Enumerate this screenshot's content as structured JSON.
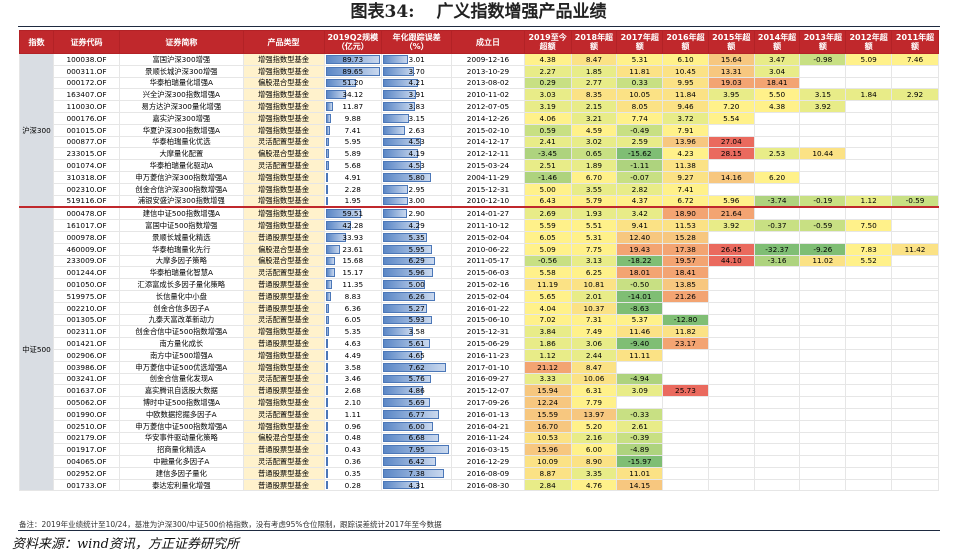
{
  "title": {
    "number": "图表34:",
    "text": "广义指数增强产品业绩"
  },
  "headers": [
    "指数",
    "证券代码",
    "证券简称",
    "产品类型",
    "2019Q2规模（亿元）",
    "年化跟踪误差（%）",
    "成立日",
    "2019至今超额",
    "2018年超额",
    "2017年超额",
    "2016年超额",
    "2015年超额",
    "2014年超额",
    "2013年超额",
    "2012年超额",
    "2011年超额"
  ],
  "groups": [
    {
      "label": "沪深300",
      "rows": [
        [
          "100038.OF",
          "富国沪深300增强",
          "增强指数型基金",
          "89.73",
          "3.01",
          "2009-12-16",
          "4.38",
          "8.47",
          "5.31",
          "6.10",
          "15.64",
          "3.47",
          "-0.98",
          "5.09",
          "7.46"
        ],
        [
          "000311.OF",
          "景顺长城沪深300增强",
          "增强指数型基金",
          "89.65",
          "3.70",
          "2013-10-29",
          "2.27",
          "1.85",
          "11.81",
          "10.45",
          "13.31",
          "3.04",
          "",
          "",
          ""
        ],
        [
          "000172.OF",
          "华泰柏瑞量化增强A",
          "偏股混合型基金",
          "51.20",
          "4.21",
          "2013-08-02",
          "0.29",
          "2.77",
          "0.33",
          "9.95",
          "19.03",
          "18.41",
          "",
          "",
          ""
        ],
        [
          "163407.OF",
          "兴全沪深300指数增强A",
          "增强指数型基金",
          "34.12",
          "3.91",
          "2010-11-02",
          "3.03",
          "8.35",
          "10.05",
          "11.84",
          "3.95",
          "5.50",
          "3.15",
          "1.84",
          "2.92"
        ],
        [
          "110030.OF",
          "易方达沪深300量化增强",
          "增强指数型基金",
          "11.87",
          "3.83",
          "2012-07-05",
          "3.19",
          "2.15",
          "8.05",
          "9.46",
          "7.20",
          "4.38",
          "3.92",
          "",
          ""
        ],
        [
          "000176.OF",
          "嘉实沪深300增强",
          "增强指数型基金",
          "9.88",
          "3.15",
          "2014-12-26",
          "4.06",
          "3.21",
          "7.74",
          "3.72",
          "5.54",
          "",
          "",
          "",
          ""
        ],
        [
          "001015.OF",
          "华夏沪深300指数增强A",
          "增强指数型基金",
          "7.41",
          "2.63",
          "2015-02-10",
          "0.59",
          "4.59",
          "-0.49",
          "7.91",
          "",
          "",
          "",
          "",
          ""
        ],
        [
          "000877.OF",
          "华泰柏瑞量化优选",
          "灵活配置型基金",
          "5.95",
          "4.53",
          "2014-12-17",
          "2.41",
          "3.02",
          "2.59",
          "13.96",
          "27.04",
          "",
          "",
          "",
          ""
        ],
        [
          "233015.OF",
          "大摩量化配置",
          "偏股混合型基金",
          "5.89",
          "4.19",
          "2012-12-11",
          "-3.45",
          "0.65",
          "-15.62",
          "4.23",
          "28.15",
          "2.53",
          "10.44",
          "",
          ""
        ],
        [
          "001074.OF",
          "华泰柏瑞量化驱动A",
          "灵活配置型基金",
          "5.68",
          "4.53",
          "2015-03-24",
          "2.51",
          "1.89",
          "-1.11",
          "11.38",
          "",
          "",
          "",
          "",
          ""
        ],
        [
          "310318.OF",
          "申万菱信沪深300指数增强A",
          "增强指数型基金",
          "4.91",
          "5.80",
          "2004-11-29",
          "-1.46",
          "6.70",
          "-0.07",
          "9.27",
          "14.16",
          "6.20",
          "",
          "",
          ""
        ],
        [
          "002310.OF",
          "创金合信沪深300指数增强A",
          "增强指数型基金",
          "2.28",
          "2.95",
          "2015-12-31",
          "5.00",
          "3.55",
          "2.82",
          "7.41",
          "",
          "",
          "",
          "",
          ""
        ],
        [
          "519116.OF",
          "浦银安盛沪深300指数增强",
          "增强指数型基金",
          "1.95",
          "3.00",
          "2010-12-10",
          "6.43",
          "5.79",
          "4.37",
          "6.72",
          "5.96",
          "-3.74",
          "-0.19",
          "1.12",
          "-0.59"
        ]
      ]
    },
    {
      "label": "中证500",
      "rows": [
        [
          "000478.OF",
          "建信中证500指数增强A",
          "增强指数型基金",
          "59.51",
          "2.90",
          "2014-01-27",
          "2.69",
          "1.93",
          "3.42",
          "18.90",
          "21.64",
          "",
          "",
          "",
          ""
        ],
        [
          "161017.OF",
          "富国中证500指数增强",
          "增强指数型基金",
          "42.28",
          "4.29",
          "2011-10-12",
          "5.59",
          "5.51",
          "9.41",
          "11.53",
          "3.92",
          "-0.37",
          "-0.59",
          "7.50",
          ""
        ],
        [
          "000978.OF",
          "景顺长城量化精选",
          "普通股票型基金",
          "33.93",
          "5.35",
          "2015-02-04",
          "6.05",
          "5.31",
          "12.40",
          "15.28",
          "",
          "",
          "",
          "",
          ""
        ],
        [
          "460009.OF",
          "华泰柏瑞量化先行",
          "偏股混合型基金",
          "23.61",
          "5.95",
          "2010-06-22",
          "5.09",
          "7.75",
          "19.43",
          "17.38",
          "26.45",
          "-32.37",
          "-9.26",
          "7.83",
          "11.42"
        ],
        [
          "233009.OF",
          "大摩多因子策略",
          "偏股混合型基金",
          "15.68",
          "6.29",
          "2011-05-17",
          "-0.56",
          "3.13",
          "-18.22",
          "19.57",
          "44.10",
          "-3.16",
          "11.02",
          "5.52",
          ""
        ],
        [
          "001244.OF",
          "华泰柏瑞量化智慧A",
          "灵活配置型基金",
          "15.17",
          "5.96",
          "2015-06-03",
          "5.58",
          "6.25",
          "18.01",
          "18.41",
          "",
          "",
          "",
          "",
          ""
        ],
        [
          "001050.OF",
          "汇添富成长多因子量化策略",
          "普通股票型基金",
          "11.35",
          "5.00",
          "2015-02-16",
          "11.19",
          "10.81",
          "-0.50",
          "13.85",
          "",
          "",
          "",
          "",
          ""
        ],
        [
          "519975.OF",
          "长信量化中小盘",
          "普通股票型基金",
          "8.83",
          "6.26",
          "2015-02-04",
          "5.65",
          "2.01",
          "-14.01",
          "21.26",
          "",
          "",
          "",
          "",
          ""
        ],
        [
          "002210.OF",
          "创金合信多因子A",
          "普通股票型基金",
          "6.36",
          "5.27",
          "2016-01-22",
          "4.04",
          "10.37",
          "-8.63",
          "",
          "",
          "",
          "",
          "",
          ""
        ],
        [
          "001305.OF",
          "九泰天富改革新动力",
          "灵活配置型基金",
          "6.05",
          "5.93",
          "2015-06-10",
          "7.02",
          "7.31",
          "5.37",
          "-12.80",
          "",
          "",
          "",
          "",
          ""
        ],
        [
          "002311.OF",
          "创金合信中证500指数增强A",
          "增强指数型基金",
          "5.35",
          "3.58",
          "2015-12-31",
          "3.84",
          "7.49",
          "11.46",
          "11.82",
          "",
          "",
          "",
          "",
          ""
        ],
        [
          "001421.OF",
          "南方量化成长",
          "普通股票型基金",
          "4.63",
          "5.61",
          "2015-06-29",
          "1.86",
          "3.06",
          "-9.40",
          "23.17",
          "",
          "",
          "",
          "",
          ""
        ],
        [
          "002906.OF",
          "南方中证500增强A",
          "增强指数型基金",
          "4.49",
          "4.65",
          "2016-11-23",
          "1.12",
          "2.44",
          "11.11",
          "",
          "",
          "",
          "",
          "",
          ""
        ],
        [
          "003986.OF",
          "申万菱信中证500优选增强A",
          "增强指数型基金",
          "3.58",
          "7.62",
          "2017-01-10",
          "21.12",
          "8.47",
          "",
          "",
          "",
          "",
          "",
          "",
          ""
        ],
        [
          "003241.OF",
          "创金合信量化发现A",
          "灵活配置型基金",
          "3.46",
          "5.76",
          "2016-09-27",
          "3.33",
          "10.06",
          "-4.94",
          "",
          "",
          "",
          "",
          "",
          ""
        ],
        [
          "001637.OF",
          "嘉实腾讯自选股大数据",
          "普通股票型基金",
          "2.68",
          "4.86",
          "2015-12-07",
          "15.94",
          "6.31",
          "3.09",
          "25.73",
          "",
          "",
          "",
          "",
          ""
        ],
        [
          "005062.OF",
          "博时中证500指数增强A",
          "增强指数型基金",
          "2.10",
          "5.69",
          "2017-09-26",
          "12.24",
          "7.79",
          "",
          "",
          "",
          "",
          "",
          "",
          ""
        ],
        [
          "001990.OF",
          "中欧数据挖掘多因子A",
          "灵活配置型基金",
          "1.11",
          "6.77",
          "2016-01-13",
          "15.59",
          "13.97",
          "-0.33",
          "",
          "",
          "",
          "",
          "",
          ""
        ],
        [
          "002510.OF",
          "申万菱信中证500指数增强A",
          "增强指数型基金",
          "0.96",
          "6.00",
          "2016-04-21",
          "16.70",
          "5.20",
          "2.61",
          "",
          "",
          "",
          "",
          "",
          ""
        ],
        [
          "002179.OF",
          "华安事件驱动量化策略",
          "偏股混合型基金",
          "0.48",
          "6.68",
          "2016-11-24",
          "10.53",
          "2.16",
          "-0.39",
          "",
          "",
          "",
          "",
          "",
          ""
        ],
        [
          "001917.OF",
          "招商量化精选A",
          "普通股票型基金",
          "0.43",
          "7.95",
          "2016-03-15",
          "15.96",
          "6.00",
          "-4.89",
          "",
          "",
          "",
          "",
          "",
          ""
        ],
        [
          "004065.OF",
          "中融量化多因子A",
          "灵活配置型基金",
          "0.36",
          "6.42",
          "2016-12-29",
          "10.09",
          "8.90",
          "-15.97",
          "",
          "",
          "",
          "",
          "",
          ""
        ],
        [
          "002952.OF",
          "建信多因子量化",
          "普通股票型基金",
          "0.35",
          "7.38",
          "2016-08-09",
          "8.87",
          "3.35",
          "11.01",
          "",
          "",
          "",
          "",
          "",
          ""
        ],
        [
          "001733.OF",
          "泰达宏利量化增强",
          "普通股票型基金",
          "0.28",
          "4.31",
          "2016-08-30",
          "2.84",
          "4.76",
          "14.15",
          "",
          "",
          "",
          "",
          "",
          ""
        ]
      ]
    }
  ],
  "note": "备注：2019年业绩统计至10/24，基准为沪深300/中证500价格指数，没有考虑95%仓位限制，跟踪误差统计2017年至今数据",
  "source": "资料来源：wind资讯，方正证券研究所"
}
